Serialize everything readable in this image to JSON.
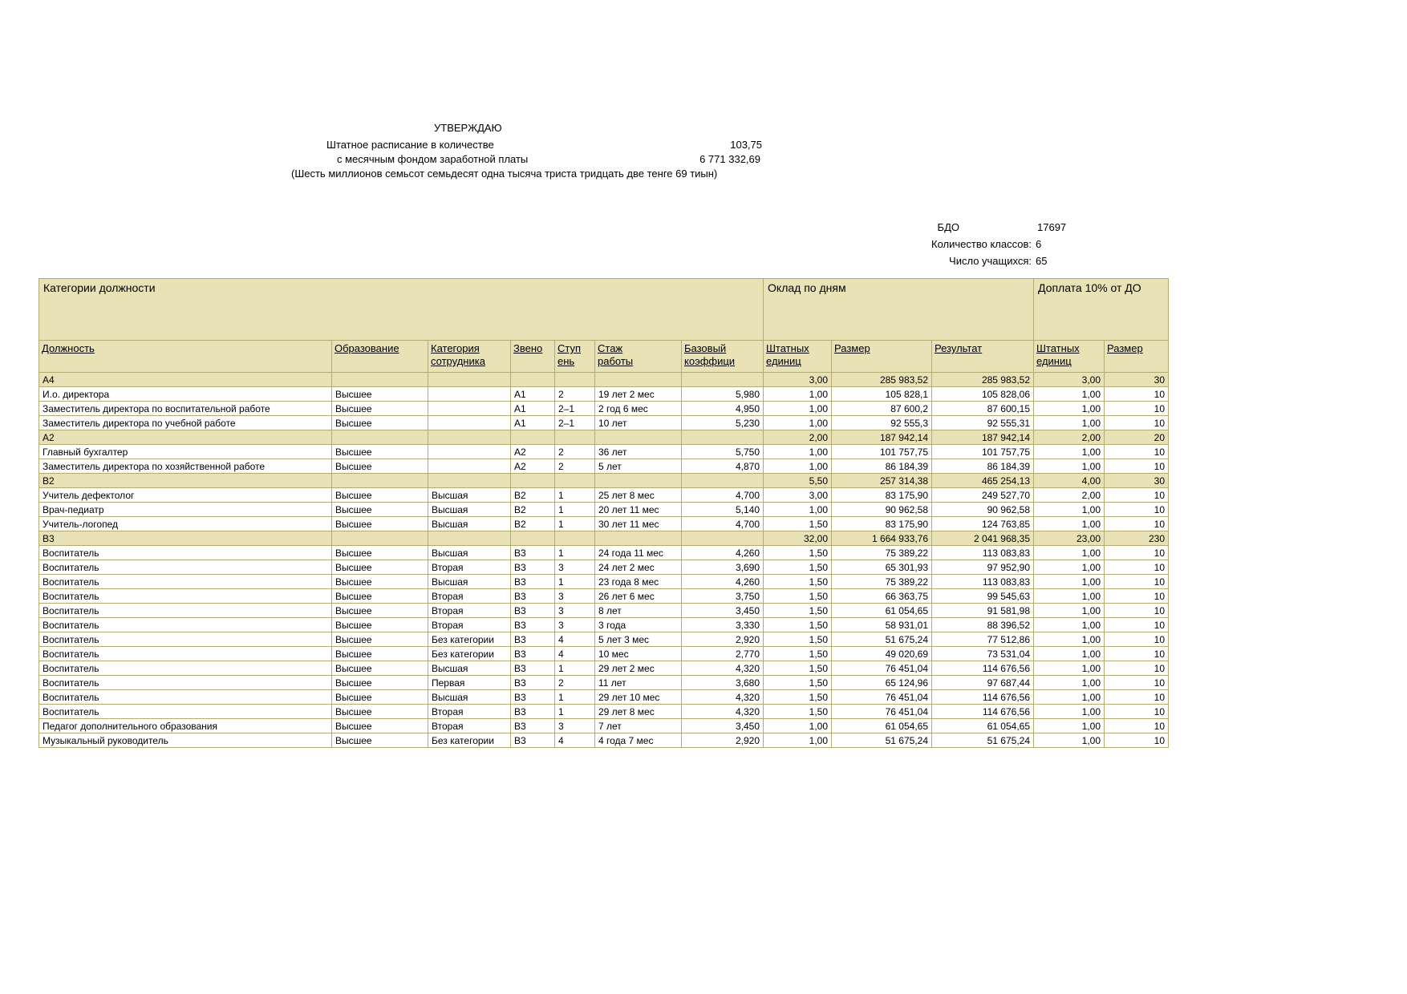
{
  "approve": {
    "title": "УТВЕРЖДАЮ",
    "staffing_label": "Штатное расписание в количестве",
    "staffing_value": "103,75",
    "fund_label": "с месячным фондом заработной платы",
    "fund_value": "6 771 332,69",
    "amount_words": "(Шесть  миллионов  семьсот семьдесят одна тысяча триста тридцать две тенге 69 тиын)"
  },
  "info": {
    "bdo_label": "БДО",
    "bdo_value": "17697",
    "classes_label": "Количество классов:",
    "classes_value": "6",
    "students_label": "Число учащихся:",
    "students_value": "65"
  },
  "colors": {
    "header_bg": "#e8e2b6",
    "border": "#b3ab76"
  },
  "table": {
    "group_headers": [
      "Категории должности",
      "Оклад по дням",
      "Доплата 10% от ДО"
    ],
    "columns": [
      "Должность",
      "Образование",
      "Категория\nсотрудника",
      "Звено",
      "Ступ\nень",
      "Стаж\nработы",
      "Базовый\nкоэффици",
      "Штатных\nединиц",
      "Размер",
      "Результат",
      "Штатных\nединиц",
      "Размер"
    ],
    "rows": [
      {
        "type": "group",
        "cells": [
          "А4",
          "",
          "",
          "",
          "",
          "",
          "",
          "3,00",
          "285 983,52",
          "285 983,52",
          "3,00",
          "30"
        ]
      },
      {
        "type": "data",
        "cells": [
          "И.о. директора",
          "Высшее",
          "",
          "А1",
          "2",
          "19 лет 2 мес",
          "5,980",
          "1,00",
          "105 828,1",
          "105 828,06",
          "1,00",
          "10"
        ]
      },
      {
        "type": "data",
        "cells": [
          "Заместитель директора по воспитательной работе",
          "Высшее",
          "",
          "А1",
          "2–1",
          "2 год 6 мес",
          "4,950",
          "1,00",
          "87 600,2",
          "87 600,15",
          "1,00",
          "10"
        ]
      },
      {
        "type": "data",
        "cells": [
          "Заместитель директора по учебной работе",
          "Высшее",
          "",
          "А1",
          "2–1",
          "10 лет",
          "5,230",
          "1,00",
          "92 555,3",
          "92 555,31",
          "1,00",
          "10"
        ]
      },
      {
        "type": "group",
        "cells": [
          "А2",
          "",
          "",
          "",
          "",
          "",
          "",
          "2,00",
          "187 942,14",
          "187 942,14",
          "2,00",
          "20"
        ]
      },
      {
        "type": "data",
        "cells": [
          "Главный бухгалтер",
          "Высшее",
          "",
          "А2",
          "2",
          "36 лет",
          "5,750",
          "1,00",
          "101 757,75",
          "101 757,75",
          "1,00",
          "10"
        ]
      },
      {
        "type": "data",
        "cells": [
          "Заместитель директора по хозяйственной работе",
          "Высшее",
          "",
          "А2",
          "2",
          "5 лет",
          "4,870",
          "1,00",
          "86 184,39",
          "86 184,39",
          "1,00",
          "10"
        ]
      },
      {
        "type": "group",
        "cells": [
          "В2",
          "",
          "",
          "",
          "",
          "",
          "",
          "5,50",
          "257 314,38",
          "465 254,13",
          "4,00",
          "30"
        ]
      },
      {
        "type": "data",
        "cells": [
          "Учитель дефектолог",
          "Высшее",
          "Высшая",
          "В2",
          "1",
          "25 лет 8 мес",
          "4,700",
          "3,00",
          "83 175,90",
          "249 527,70",
          "2,00",
          "10"
        ]
      },
      {
        "type": "data",
        "cells": [
          "Врач-педиатр",
          "Высшее",
          "Высшая",
          "В2",
          "1",
          "20 лет 11 мес",
          "5,140",
          "1,00",
          "90 962,58",
          "90 962,58",
          "1,00",
          "10"
        ]
      },
      {
        "type": "data",
        "cells": [
          "Учитель-логопед",
          "Высшее",
          "Высшая",
          "В2",
          "1",
          "30 лет 11 мес",
          "4,700",
          "1,50",
          "83 175,90",
          "124 763,85",
          "1,00",
          "10"
        ]
      },
      {
        "type": "group",
        "cells": [
          "В3",
          "",
          "",
          "",
          "",
          "",
          "",
          "32,00",
          "1 664 933,76",
          "2 041 968,35",
          "23,00",
          "230"
        ]
      },
      {
        "type": "data",
        "cells": [
          "Воспитатель",
          "Высшее",
          "Высшая",
          "В3",
          "1",
          "24 года 11 мес",
          "4,260",
          "1,50",
          "75 389,22",
          "113 083,83",
          "1,00",
          "10"
        ]
      },
      {
        "type": "data",
        "cells": [
          "Воспитатель",
          "Высшее",
          "Вторая",
          "В3",
          "3",
          "24 лет 2 мес",
          "3,690",
          "1,50",
          "65 301,93",
          "97 952,90",
          "1,00",
          "10"
        ]
      },
      {
        "type": "data",
        "cells": [
          "Воспитатель",
          "Высшее",
          "Высшая",
          "В3",
          "1",
          "23 года 8 мес",
          "4,260",
          "1,50",
          "75 389,22",
          "113 083,83",
          "1,00",
          "10"
        ]
      },
      {
        "type": "data",
        "cells": [
          "Воспитатель",
          "Высшее",
          "Вторая",
          "В3",
          "3",
          "26 лет 6 мес",
          "3,750",
          "1,50",
          "66 363,75",
          "99 545,63",
          "1,00",
          "10"
        ]
      },
      {
        "type": "data",
        "cells": [
          "Воспитатель",
          "Высшее",
          "Вторая",
          "В3",
          "3",
          "8 лет",
          "3,450",
          "1,50",
          "61 054,65",
          "91 581,98",
          "1,00",
          "10"
        ]
      },
      {
        "type": "data",
        "cells": [
          "Воспитатель",
          "Высшее",
          "Вторая",
          "В3",
          "3",
          "3 года",
          "3,330",
          "1,50",
          "58 931,01",
          "88 396,52",
          "1,00",
          "10"
        ]
      },
      {
        "type": "data",
        "cells": [
          "Воспитатель",
          "Высшее",
          "Без категории",
          "В3",
          "4",
          "5 лет 3 мес",
          "2,920",
          "1,50",
          "51 675,24",
          "77 512,86",
          "1,00",
          "10"
        ]
      },
      {
        "type": "data",
        "cells": [
          "Воспитатель",
          "Высшее",
          "Без категории",
          "В3",
          "4",
          "10 мес",
          "2,770",
          "1,50",
          "49 020,69",
          "73 531,04",
          "1,00",
          "10"
        ]
      },
      {
        "type": "data",
        "cells": [
          "Воспитатель",
          "Высшее",
          "Высшая",
          "В3",
          "1",
          "29 лет 2 мес",
          "4,320",
          "1,50",
          "76 451,04",
          "114 676,56",
          "1,00",
          "10"
        ]
      },
      {
        "type": "data",
        "cells": [
          "Воспитатель",
          "Высшее",
          "Первая",
          "В3",
          "2",
          "11 лет",
          "3,680",
          "1,50",
          "65 124,96",
          "97 687,44",
          "1,00",
          "10"
        ]
      },
      {
        "type": "data",
        "cells": [
          "Воспитатель",
          "Высшее",
          "Высшая",
          "В3",
          "1",
          "29 лет 10 мес",
          "4,320",
          "1,50",
          "76 451,04",
          "114 676,56",
          "1,00",
          "10"
        ]
      },
      {
        "type": "data",
        "cells": [
          "Воспитатель",
          "Высшее",
          "Вторая",
          "В3",
          "1",
          "29 лет 8 мес",
          "4,320",
          "1,50",
          "76 451,04",
          "114 676,56",
          "1,00",
          "10"
        ]
      },
      {
        "type": "data",
        "cells": [
          "Педагог дополнительного образования",
          "Высшее",
          "Вторая",
          "В3",
          "3",
          "7 лет",
          "3,450",
          "1,00",
          "61 054,65",
          "61 054,65",
          "1,00",
          "10"
        ]
      },
      {
        "type": "data",
        "cells": [
          "Музыкальный руководитель",
          "Высшее",
          "Без категории",
          "В3",
          "4",
          "4 года 7 мес",
          "2,920",
          "1,00",
          "51 675,24",
          "51 675,24",
          "1,00",
          "10"
        ]
      }
    ]
  }
}
